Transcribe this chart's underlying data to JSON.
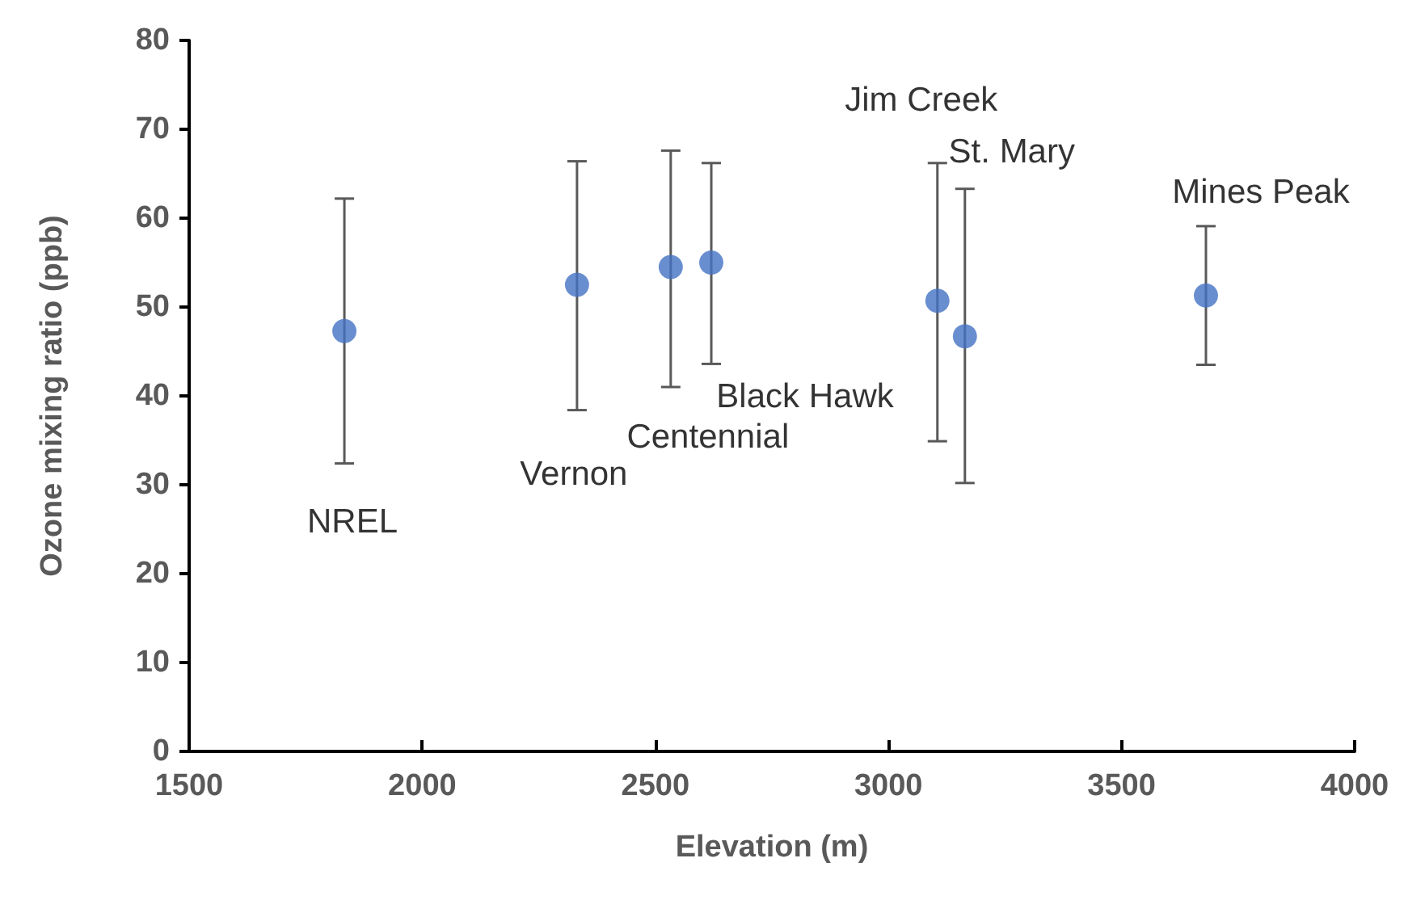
{
  "chart_data": {
    "type": "scatter",
    "xlabel": "Elevation (m)",
    "ylabel": "Ozone mixing ratio (ppb)",
    "x": [
      1833,
      2332,
      2533,
      2620,
      3105,
      3164,
      3681
    ],
    "values": [
      47.3,
      52.5,
      54.5,
      55.0,
      50.7,
      46.7,
      51.3
    ],
    "errors": [
      [
        32.4,
        62.2
      ],
      [
        38.4,
        66.4
      ],
      [
        41.0,
        67.6
      ],
      [
        43.6,
        66.2
      ],
      [
        34.9,
        66.2
      ],
      [
        30.2,
        63.3
      ],
      [
        43.5,
        59.1
      ]
    ],
    "color": "#4472c4",
    "marker": "circle",
    "xlim": [
      1500,
      4000
    ],
    "xticks": [
      1500,
      2000,
      2500,
      3000,
      3500,
      4000
    ],
    "ylim": [
      0,
      80
    ],
    "yticks": [
      0,
      10,
      20,
      30,
      40,
      50,
      60,
      70,
      80
    ],
    "grid": false,
    "annotations": [
      "NREL",
      "Vernon",
      "Centennial",
      "Black Hawk",
      "Jim Creek",
      "St. Mary",
      "Mines Peak"
    ]
  }
}
